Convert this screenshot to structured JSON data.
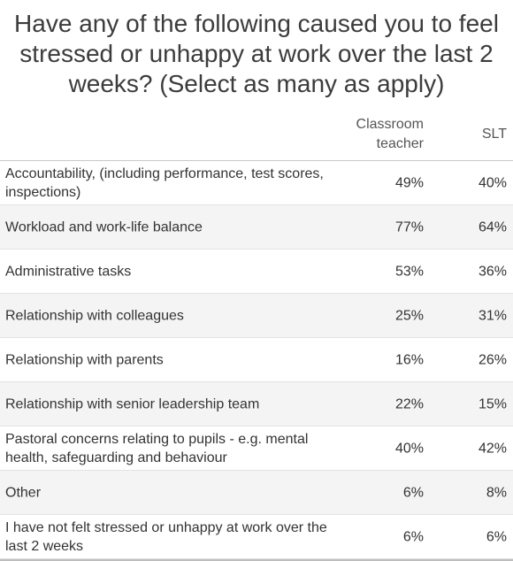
{
  "title": "Have any of the following caused you to feel stressed or unhappy at work over the last 2 weeks? (Select as many as apply)",
  "chart_data": {
    "type": "table",
    "title": "Have any of the following caused you to feel stressed or unhappy at work over the last 2 weeks? (Select as many as apply)",
    "columns": [
      "Classroom teacher",
      "SLT"
    ],
    "rows": [
      {
        "label": "Accountability, (including performance, test scores, inspections)",
        "values": [
          "49%",
          "40%"
        ]
      },
      {
        "label": "Workload and work-life balance",
        "values": [
          "77%",
          "64%"
        ]
      },
      {
        "label": "Administrative tasks",
        "values": [
          "53%",
          "36%"
        ]
      },
      {
        "label": "Relationship with colleagues",
        "values": [
          "25%",
          "31%"
        ]
      },
      {
        "label": "Relationship with parents",
        "values": [
          "16%",
          "26%"
        ]
      },
      {
        "label": "Relationship with senior leadership team",
        "values": [
          "22%",
          "15%"
        ]
      },
      {
        "label": "Pastoral concerns relating to pupils - e.g. mental health, safeguarding and behaviour",
        "values": [
          "40%",
          "42%"
        ]
      },
      {
        "label": "Other",
        "values": [
          "6%",
          "8%"
        ]
      },
      {
        "label": "I have not felt stressed or unhappy at work over the last 2 weeks",
        "values": [
          "6%",
          "6%"
        ]
      }
    ]
  },
  "colors": {
    "shaded_row": "#f4f4f4",
    "text": "#333333",
    "title": "#3c3c3c"
  }
}
